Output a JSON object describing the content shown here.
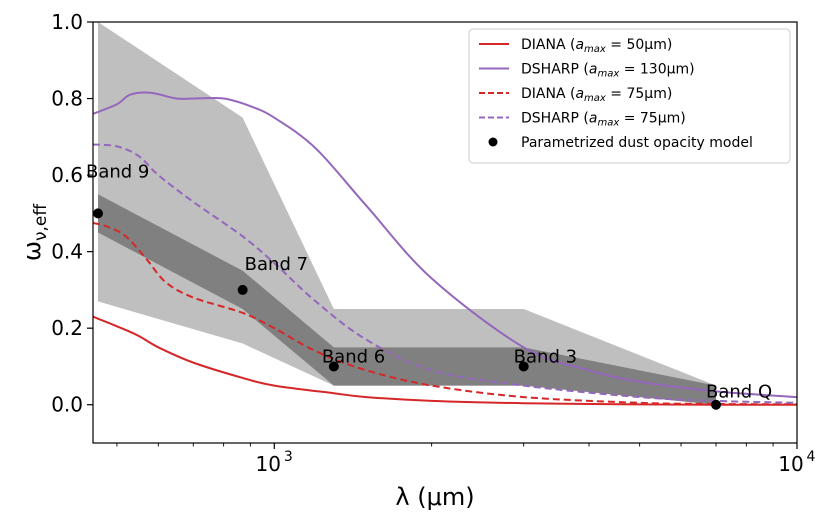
{
  "chart_data": {
    "type": "line",
    "xlabel": "λ (μm)",
    "ylabel": "ω_ν,eff",
    "xscale": "log",
    "xlim": [
      450,
      10000
    ],
    "ylim": [
      -0.1,
      1.0
    ],
    "x_tick_labels": [
      "10",
      "3",
      "10",
      "4"
    ],
    "y_ticks": [
      "0.0",
      "0.2",
      "0.4",
      "0.6",
      "0.8",
      "1.0"
    ],
    "legend_position": "top-right",
    "colors": {
      "red": "#d62728",
      "purple": "#9467bd",
      "shade_light": "#bfbfbf",
      "shade_dark": "#808080"
    },
    "series": [
      {
        "name": "DIANA (amax = 50μm)",
        "legend_main": "DIANA (",
        "legend_a": "a",
        "legend_sub": "max",
        "legend_rest": " = 50μm)",
        "style": "solid",
        "color": "#d62728",
        "x": [
          450,
          500,
          550,
          600,
          700,
          870,
          1000,
          1300,
          1500,
          2000,
          3000,
          5000,
          7000,
          10000
        ],
        "y": [
          0.23,
          0.205,
          0.18,
          0.15,
          0.11,
          0.07,
          0.05,
          0.03,
          0.02,
          0.01,
          0.004,
          0.001,
          0.0,
          0.0
        ]
      },
      {
        "name": "DSHARP (amax = 130μm)",
        "legend_main": "DSHARP (",
        "legend_a": "a",
        "legend_sub": "max",
        "legend_rest": " = 130μm)",
        "style": "solid",
        "color": "#9467bd",
        "x": [
          450,
          500,
          530,
          580,
          650,
          700,
          800,
          900,
          1000,
          1200,
          1500,
          2000,
          3000,
          4000,
          5000,
          7000,
          10000
        ],
        "y": [
          0.76,
          0.785,
          0.81,
          0.815,
          0.8,
          0.8,
          0.8,
          0.78,
          0.75,
          0.67,
          0.52,
          0.33,
          0.15,
          0.09,
          0.06,
          0.035,
          0.02
        ]
      },
      {
        "name": "DIANA (amax = 75μm)",
        "legend_main": "DIANA (",
        "legend_a": "a",
        "legend_sub": "max",
        "legend_rest": " = 75μm)",
        "style": "dashed",
        "color": "#d62728",
        "x": [
          450,
          480,
          520,
          570,
          620,
          700,
          870,
          1000,
          1200,
          1500,
          2000,
          3000,
          5000,
          7000,
          10000
        ],
        "y": [
          0.475,
          0.465,
          0.44,
          0.38,
          0.32,
          0.28,
          0.24,
          0.2,
          0.14,
          0.09,
          0.05,
          0.02,
          0.005,
          0.002,
          0.001
        ]
      },
      {
        "name": "DSHARP (amax = 75μm)",
        "legend_main": "DSHARP (",
        "legend_a": "a",
        "legend_sub": "max",
        "legend_rest": " = 75μm)",
        "style": "dashed",
        "color": "#9467bd",
        "x": [
          450,
          500,
          550,
          600,
          700,
          870,
          1000,
          1200,
          1500,
          2000,
          3000,
          5000,
          7000,
          10000
        ],
        "y": [
          0.68,
          0.675,
          0.65,
          0.6,
          0.53,
          0.44,
          0.37,
          0.27,
          0.17,
          0.09,
          0.05,
          0.02,
          0.01,
          0.005
        ]
      },
      {
        "name": "Parametrized dust opacity model",
        "style": "points",
        "color": "#000000",
        "x": [
          460,
          870,
          1300,
          3000,
          7000
        ],
        "y": [
          0.5,
          0.3,
          0.1,
          0.1,
          0.0
        ],
        "labels": [
          "Band 9",
          "Band 7",
          "Band 6",
          "Band 3",
          "Band Q"
        ]
      }
    ],
    "shaded_regions": [
      {
        "color": "#bfbfbf",
        "x": [
          460,
          870,
          1300,
          3000,
          7000
        ],
        "upper": [
          1.0,
          0.75,
          0.25,
          0.25,
          0.05
        ],
        "lower": [
          0.27,
          0.16,
          0.05,
          0.05,
          0.0
        ]
      },
      {
        "color": "#808080",
        "x": [
          460,
          870,
          1300,
          3000,
          7000
        ],
        "upper": [
          0.55,
          0.35,
          0.15,
          0.15,
          0.05
        ],
        "lower": [
          0.45,
          0.25,
          0.05,
          0.05,
          0.0
        ]
      }
    ]
  }
}
